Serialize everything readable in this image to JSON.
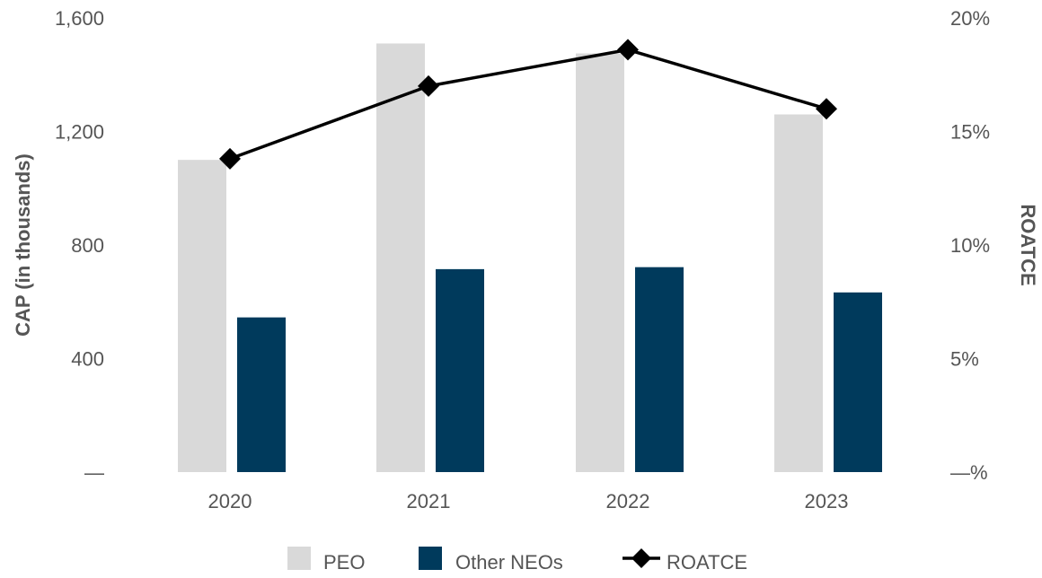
{
  "chart_data": {
    "type": "bar",
    "categories": [
      "2020",
      "2021",
      "2022",
      "2023"
    ],
    "series": [
      {
        "name": "PEO",
        "kind": "bar",
        "axis": "left",
        "color": "#d9d9d9",
        "values": [
          1100,
          1510,
          1475,
          1260
        ]
      },
      {
        "name": "Other NEOs",
        "kind": "bar",
        "axis": "left",
        "color": "#003a5c",
        "values": [
          545,
          715,
          722,
          633
        ]
      },
      {
        "name": "ROATCE",
        "kind": "line",
        "axis": "right",
        "color": "#000000",
        "marker": "diamond",
        "values": [
          13.8,
          17.0,
          18.6,
          16.0
        ]
      }
    ],
    "ylabel": "CAP (in thousands)",
    "y2label": "ROATCE",
    "ylim": [
      0,
      1600
    ],
    "y2lim": [
      0,
      20
    ],
    "yticks": [
      {
        "value": 0,
        "label": "—"
      },
      {
        "value": 400,
        "label": "400"
      },
      {
        "value": 800,
        "label": "800"
      },
      {
        "value": 1200,
        "label": "1,200"
      },
      {
        "value": 1600,
        "label": "1,600"
      }
    ],
    "y2ticks": [
      {
        "value": 0,
        "label": "—%"
      },
      {
        "value": 5,
        "label": "5%"
      },
      {
        "value": 10,
        "label": "10%"
      },
      {
        "value": 15,
        "label": "15%"
      },
      {
        "value": 20,
        "label": "20%"
      }
    ],
    "grid": false,
    "legend": {
      "position": "bottom",
      "items": [
        {
          "label": "PEO",
          "symbol": "square",
          "color": "#d9d9d9"
        },
        {
          "label": "Other NEOs",
          "symbol": "square",
          "color": "#003a5c"
        },
        {
          "label": "ROATCE",
          "symbol": "line-diamond",
          "color": "#000000"
        }
      ]
    }
  }
}
